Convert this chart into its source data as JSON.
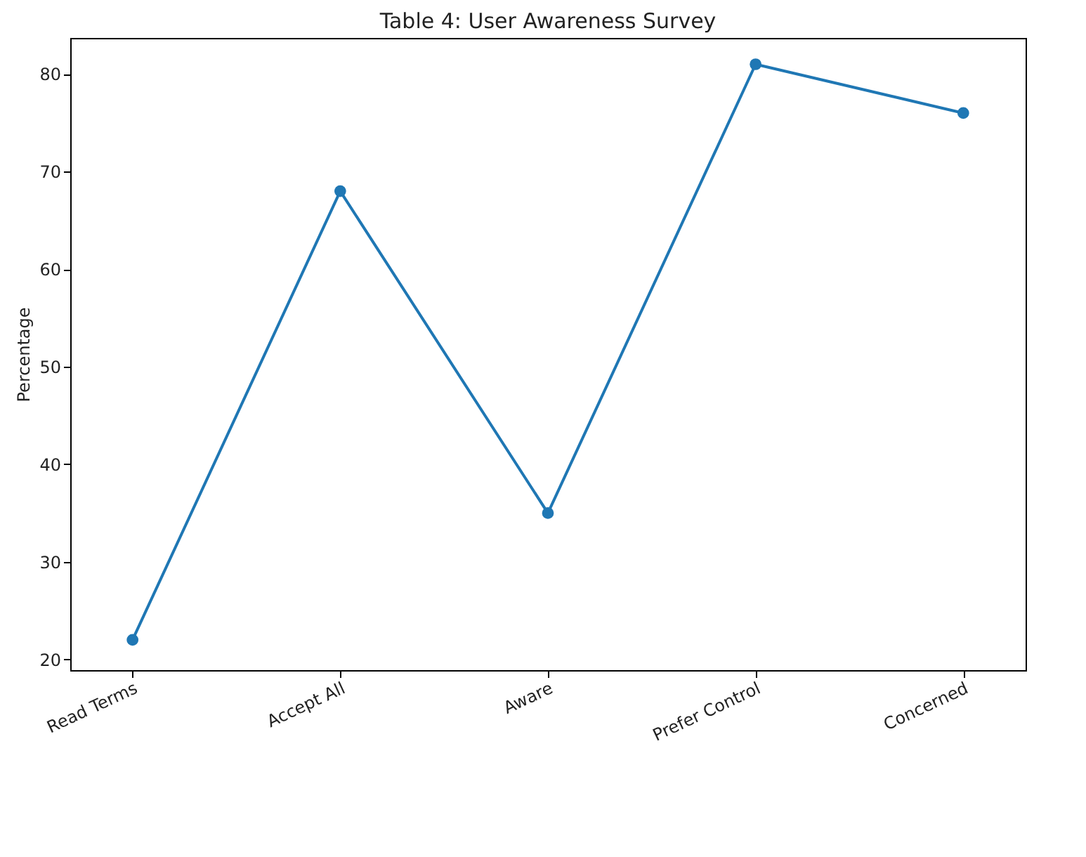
{
  "chart_data": {
    "type": "line",
    "title": "Table 4: User Awareness Survey",
    "ylabel": "Percentage",
    "categories": [
      "Read Terms",
      "Accept All",
      "Aware",
      "Prefer Control",
      "Concerned"
    ],
    "series": [
      {
        "color": "#1f77b4",
        "values": [
          22,
          68,
          35,
          81,
          76
        ]
      }
    ],
    "ylim": [
      18.9,
      83.7
    ],
    "yticks": [
      20,
      30,
      40,
      50,
      60,
      70,
      80
    ],
    "marker": "circle",
    "line_style": "solid",
    "grid": false,
    "legend": false
  }
}
